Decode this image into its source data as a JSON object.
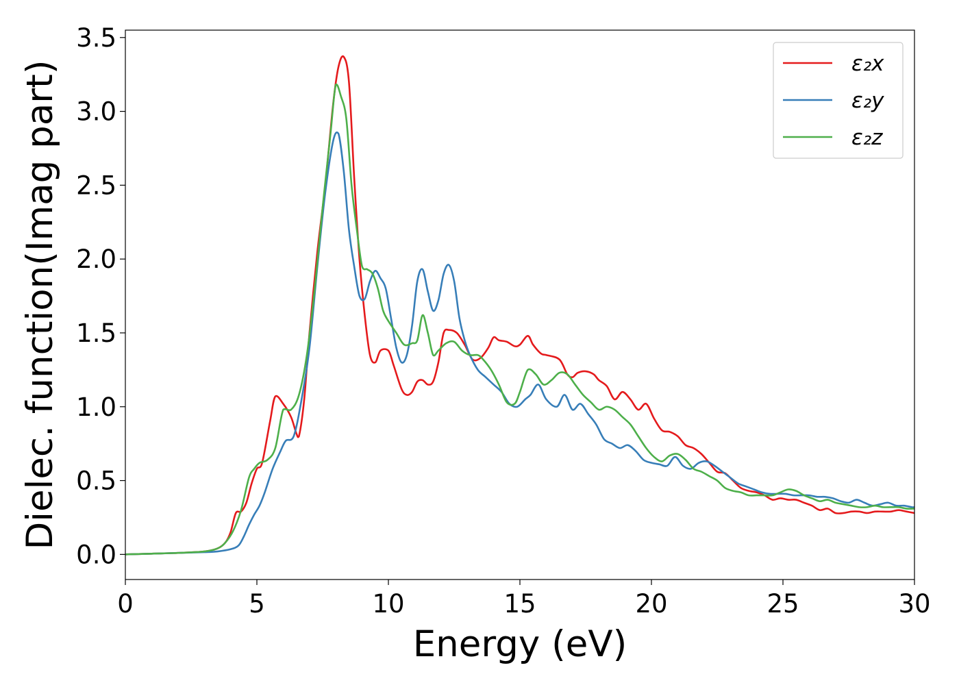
{
  "chart_data": {
    "type": "line",
    "title": "",
    "xlabel": "Energy (eV)",
    "ylabel": "Dielec. function(Imag part)",
    "xlim": [
      0,
      30
    ],
    "ylim": [
      -0.17,
      3.55
    ],
    "xticks": [
      0,
      5,
      10,
      15,
      20,
      25,
      30
    ],
    "xtick_labels": [
      "0",
      "5",
      "10",
      "15",
      "20",
      "25",
      "30"
    ],
    "yticks": [
      0.0,
      0.5,
      1.0,
      1.5,
      2.0,
      2.5,
      3.0,
      3.5
    ],
    "ytick_labels": [
      "0.0",
      "0.5",
      "1.0",
      "1.5",
      "2.0",
      "2.5",
      "3.0",
      "3.5"
    ],
    "grid": false,
    "legend_position": "top-right",
    "series": [
      {
        "name": "ε₂x",
        "color": "#e41a1c",
        "x": [
          0,
          1,
          2,
          3,
          3.5,
          3.8,
          4.0,
          4.2,
          4.4,
          4.6,
          4.8,
          5.0,
          5.2,
          5.5,
          5.7,
          6.0,
          6.3,
          6.5,
          6.6,
          6.8,
          7.0,
          7.3,
          7.6,
          7.9,
          8.1,
          8.3,
          8.5,
          8.7,
          8.9,
          9.1,
          9.3,
          9.5,
          9.7,
          10.0,
          10.2,
          10.5,
          10.7,
          10.9,
          11.1,
          11.3,
          11.5,
          11.7,
          11.9,
          12.1,
          12.3,
          12.6,
          12.9,
          13.2,
          13.5,
          13.8,
          14.0,
          14.2,
          14.5,
          14.8,
          15.0,
          15.3,
          15.5,
          15.8,
          16.0,
          16.5,
          16.8,
          17.0,
          17.2,
          17.5,
          17.8,
          18.0,
          18.3,
          18.6,
          18.9,
          19.2,
          19.5,
          19.8,
          20.1,
          20.4,
          20.7,
          21.0,
          21.3,
          21.6,
          21.9,
          22.2,
          22.5,
          22.8,
          23.1,
          23.4,
          23.7,
          24.0,
          24.3,
          24.6,
          24.9,
          25.2,
          25.5,
          25.8,
          26.1,
          26.4,
          26.7,
          27.0,
          27.3,
          27.6,
          27.9,
          28.2,
          28.5,
          28.8,
          29.1,
          29.4,
          29.7,
          30.0
        ],
        "y": [
          0.0,
          0.005,
          0.01,
          0.02,
          0.04,
          0.08,
          0.15,
          0.28,
          0.29,
          0.35,
          0.48,
          0.58,
          0.62,
          0.9,
          1.07,
          1.02,
          0.93,
          0.82,
          0.8,
          1.05,
          1.5,
          2.05,
          2.5,
          3.05,
          3.3,
          3.37,
          3.2,
          2.55,
          2.0,
          1.62,
          1.35,
          1.3,
          1.38,
          1.38,
          1.28,
          1.12,
          1.08,
          1.1,
          1.17,
          1.18,
          1.15,
          1.17,
          1.3,
          1.5,
          1.52,
          1.5,
          1.42,
          1.32,
          1.33,
          1.4,
          1.47,
          1.45,
          1.44,
          1.41,
          1.42,
          1.48,
          1.42,
          1.36,
          1.35,
          1.32,
          1.22,
          1.2,
          1.23,
          1.24,
          1.22,
          1.18,
          1.14,
          1.05,
          1.1,
          1.05,
          0.98,
          1.02,
          0.92,
          0.84,
          0.83,
          0.8,
          0.74,
          0.72,
          0.68,
          0.62,
          0.56,
          0.55,
          0.5,
          0.45,
          0.43,
          0.42,
          0.4,
          0.37,
          0.38,
          0.37,
          0.37,
          0.35,
          0.33,
          0.3,
          0.31,
          0.28,
          0.28,
          0.29,
          0.29,
          0.28,
          0.29,
          0.29,
          0.29,
          0.3,
          0.29,
          0.28
        ]
      },
      {
        "name": "ε₂y",
        "color": "#377eb8",
        "x": [
          0,
          1,
          2,
          3,
          3.5,
          4.0,
          4.3,
          4.5,
          4.7,
          4.9,
          5.1,
          5.3,
          5.6,
          5.9,
          6.1,
          6.4,
          6.7,
          7.0,
          7.3,
          7.6,
          7.9,
          8.1,
          8.3,
          8.5,
          8.7,
          8.9,
          9.1,
          9.3,
          9.5,
          9.7,
          9.9,
          10.1,
          10.3,
          10.5,
          10.7,
          10.9,
          11.1,
          11.3,
          11.5,
          11.7,
          11.9,
          12.1,
          12.3,
          12.5,
          12.7,
          12.9,
          13.1,
          13.4,
          13.7,
          14.0,
          14.3,
          14.6,
          14.9,
          15.2,
          15.4,
          15.7,
          16.0,
          16.4,
          16.7,
          17.0,
          17.3,
          17.6,
          17.9,
          18.2,
          18.5,
          18.8,
          19.1,
          19.4,
          19.7,
          20.0,
          20.3,
          20.6,
          20.9,
          21.2,
          21.5,
          21.8,
          22.1,
          22.4,
          22.7,
          23.0,
          23.3,
          23.6,
          23.9,
          24.2,
          24.5,
          24.8,
          25.1,
          25.4,
          25.7,
          26.0,
          26.3,
          26.6,
          26.9,
          27.2,
          27.5,
          27.8,
          28.1,
          28.4,
          28.7,
          29.0,
          29.3,
          29.6,
          29.9,
          30.0
        ],
        "y": [
          0.0,
          0.005,
          0.01,
          0.015,
          0.02,
          0.035,
          0.06,
          0.12,
          0.2,
          0.27,
          0.33,
          0.42,
          0.58,
          0.7,
          0.77,
          0.8,
          1.05,
          1.4,
          1.95,
          2.45,
          2.8,
          2.85,
          2.6,
          2.2,
          1.95,
          1.75,
          1.73,
          1.85,
          1.92,
          1.87,
          1.8,
          1.6,
          1.4,
          1.3,
          1.35,
          1.55,
          1.85,
          1.93,
          1.78,
          1.65,
          1.72,
          1.9,
          1.96,
          1.85,
          1.6,
          1.45,
          1.35,
          1.25,
          1.2,
          1.15,
          1.1,
          1.02,
          1.0,
          1.05,
          1.08,
          1.15,
          1.05,
          1.0,
          1.08,
          0.98,
          1.02,
          0.95,
          0.88,
          0.78,
          0.75,
          0.72,
          0.74,
          0.7,
          0.64,
          0.62,
          0.61,
          0.6,
          0.66,
          0.6,
          0.58,
          0.62,
          0.63,
          0.6,
          0.56,
          0.52,
          0.48,
          0.46,
          0.44,
          0.42,
          0.41,
          0.41,
          0.41,
          0.4,
          0.4,
          0.4,
          0.39,
          0.39,
          0.38,
          0.36,
          0.35,
          0.37,
          0.35,
          0.33,
          0.34,
          0.35,
          0.33,
          0.33,
          0.32,
          0.32
        ]
      },
      {
        "name": "ε₂z",
        "color": "#4daf4a",
        "x": [
          0,
          1,
          2,
          3,
          3.5,
          3.8,
          4.1,
          4.4,
          4.7,
          4.9,
          5.1,
          5.4,
          5.7,
          6.0,
          6.3,
          6.6,
          6.9,
          7.2,
          7.5,
          7.8,
          8.0,
          8.2,
          8.4,
          8.6,
          8.8,
          9.0,
          9.2,
          9.4,
          9.6,
          9.8,
          10.0,
          10.3,
          10.6,
          10.9,
          11.1,
          11.3,
          11.5,
          11.7,
          11.9,
          12.2,
          12.5,
          12.8,
          13.1,
          13.4,
          13.6,
          13.9,
          14.2,
          14.5,
          14.8,
          15.0,
          15.3,
          15.6,
          15.9,
          16.2,
          16.5,
          16.8,
          17.1,
          17.4,
          17.7,
          18.0,
          18.3,
          18.6,
          18.9,
          19.2,
          19.5,
          19.8,
          20.1,
          20.4,
          20.7,
          21.0,
          21.3,
          21.6,
          21.9,
          22.2,
          22.5,
          22.8,
          23.1,
          23.4,
          23.7,
          24.0,
          24.3,
          24.6,
          24.9,
          25.2,
          25.5,
          25.8,
          26.1,
          26.4,
          26.7,
          27.0,
          27.3,
          27.6,
          27.9,
          28.2,
          28.5,
          28.8,
          29.1,
          29.4,
          29.7,
          30.0
        ],
        "y": [
          0.0,
          0.005,
          0.01,
          0.02,
          0.04,
          0.08,
          0.16,
          0.3,
          0.52,
          0.58,
          0.62,
          0.64,
          0.72,
          0.98,
          0.98,
          1.08,
          1.35,
          1.8,
          2.35,
          2.85,
          3.18,
          3.1,
          2.95,
          2.5,
          2.2,
          1.95,
          1.93,
          1.9,
          1.8,
          1.65,
          1.58,
          1.5,
          1.42,
          1.43,
          1.45,
          1.62,
          1.5,
          1.35,
          1.38,
          1.43,
          1.44,
          1.38,
          1.35,
          1.35,
          1.32,
          1.25,
          1.15,
          1.03,
          1.02,
          1.1,
          1.25,
          1.22,
          1.15,
          1.18,
          1.23,
          1.22,
          1.15,
          1.08,
          1.03,
          0.98,
          1.0,
          0.98,
          0.93,
          0.88,
          0.8,
          0.72,
          0.66,
          0.63,
          0.67,
          0.68,
          0.64,
          0.58,
          0.56,
          0.53,
          0.5,
          0.45,
          0.43,
          0.42,
          0.4,
          0.4,
          0.4,
          0.4,
          0.42,
          0.44,
          0.43,
          0.4,
          0.38,
          0.36,
          0.37,
          0.35,
          0.34,
          0.33,
          0.32,
          0.32,
          0.33,
          0.32,
          0.32,
          0.32,
          0.31,
          0.31
        ]
      }
    ]
  }
}
